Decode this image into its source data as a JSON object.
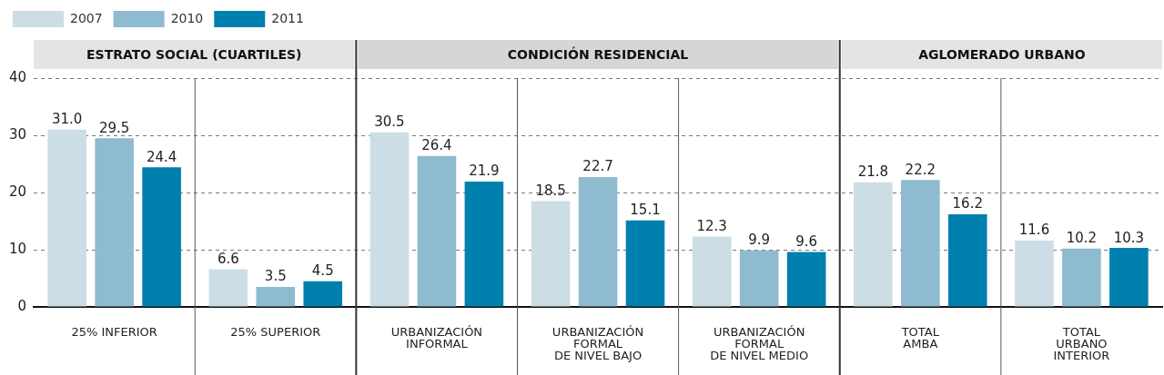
{
  "chart_data": {
    "type": "bar",
    "categories": [
      "25% INFERIOR",
      "25% SUPERIOR",
      "URBANIZACIÓN\nINFORMAL",
      "URBANIZACIÓN\nFORMAL\nDE NIVEL BAJO",
      "URBANIZACIÓN\nFORMAL\nDE NIVEL MEDIO",
      "TOTAL\nAMBA",
      "TOTAL\nURBANO\nINTERIOR"
    ],
    "series": [
      {
        "name": "2007",
        "color": "#cddde5",
        "values": [
          31.0,
          6.6,
          30.5,
          18.5,
          12.3,
          21.8,
          11.6
        ],
        "value_labels": [
          "31.0",
          "6.6",
          "30.5",
          "18.5",
          "12.3",
          "21.8",
          "11.6"
        ]
      },
      {
        "name": "2010",
        "color": "#8fbbd0",
        "values": [
          29.5,
          3.5,
          26.4,
          22.7,
          9.9,
          22.2,
          10.2
        ],
        "value_labels": [
          "29.5",
          "3.5",
          "26.4",
          "22.7",
          "9.9",
          "22.2",
          "10.2"
        ]
      },
      {
        "name": "2011",
        "color": "#0080ae",
        "values": [
          24.4,
          4.5,
          21.9,
          15.1,
          9.6,
          16.2,
          10.3
        ],
        "value_labels": [
          "24.4",
          "4.5",
          "21.9",
          "15.1",
          "9.6",
          "16.2",
          "10.3"
        ]
      }
    ],
    "annotations": [
      "ESTRATO SOCIAL (CUARTILES)",
      "CONDICIÓN RESIDENCIAL",
      "AGLOMERADO URBANO"
    ],
    "ylim": [
      0,
      40
    ],
    "yticks": [
      0,
      10,
      20,
      30,
      40
    ],
    "grid": "y",
    "legend": "top left"
  }
}
